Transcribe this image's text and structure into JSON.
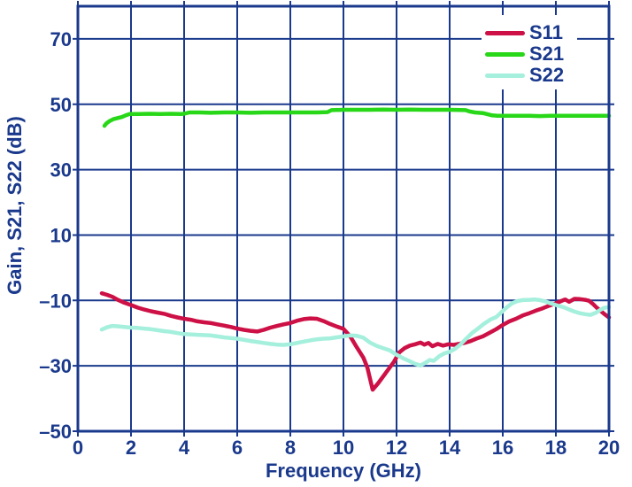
{
  "colors": {
    "axis": "#1a398c",
    "background": "#ffffff",
    "s11": "#cd1045",
    "s21": "#28d818",
    "s22": "#a5efdd"
  },
  "chart_data": {
    "type": "line",
    "title": "",
    "xlabel": "Frequency (GHz)",
    "ylabel": "Gain, S21, S22 (dB)",
    "xlim": [
      0,
      20
    ],
    "ylim": [
      -50,
      80
    ],
    "grid": true,
    "legend_position": "top-right",
    "x_ticks": {
      "values": [
        0,
        2,
        4,
        6,
        8,
        10,
        12,
        14,
        16,
        18,
        20
      ],
      "labels": [
        "0",
        "2",
        "4",
        "6",
        "8",
        "10",
        "12",
        "14",
        "16",
        "18",
        "20"
      ]
    },
    "y_ticks": {
      "values": [
        70,
        50,
        30,
        10,
        -10,
        -30,
        -50
      ],
      "labels": [
        "70",
        "50",
        "30",
        "10",
        "–10",
        "–30",
        "–50"
      ]
    },
    "series": [
      {
        "name": "S11",
        "color": "#cd1045",
        "points": [
          [
            0.9,
            -7.8
          ],
          [
            1.1,
            -8.3
          ],
          [
            1.3,
            -8.9
          ],
          [
            1.5,
            -9.8
          ],
          [
            1.75,
            -10.7
          ],
          [
            2,
            -11.4
          ],
          [
            2.25,
            -12.2
          ],
          [
            2.5,
            -12.8
          ],
          [
            2.75,
            -13.3
          ],
          [
            3,
            -13.7
          ],
          [
            3.25,
            -14.1
          ],
          [
            3.5,
            -14.7
          ],
          [
            3.75,
            -15.2
          ],
          [
            4,
            -15.6
          ],
          [
            4.25,
            -15.9
          ],
          [
            4.5,
            -16.4
          ],
          [
            4.75,
            -16.7
          ],
          [
            5,
            -16.9
          ],
          [
            5.25,
            -17.3
          ],
          [
            5.5,
            -17.7
          ],
          [
            5.75,
            -18.1
          ],
          [
            6,
            -18.6
          ],
          [
            6.25,
            -19
          ],
          [
            6.5,
            -19.3
          ],
          [
            6.75,
            -19.5
          ],
          [
            7,
            -19
          ],
          [
            7.25,
            -18.3
          ],
          [
            7.5,
            -17.8
          ],
          [
            7.75,
            -17.3
          ],
          [
            8,
            -16.9
          ],
          [
            8.25,
            -16.2
          ],
          [
            8.5,
            -15.7
          ],
          [
            8.75,
            -15.5
          ],
          [
            9,
            -15.6
          ],
          [
            9.25,
            -16.3
          ],
          [
            9.5,
            -17.2
          ],
          [
            9.75,
            -18
          ],
          [
            10,
            -18.7
          ],
          [
            10.25,
            -20.9
          ],
          [
            10.5,
            -24.3
          ],
          [
            10.75,
            -27.5
          ],
          [
            10.9,
            -30.5
          ],
          [
            11.1,
            -37.3
          ],
          [
            11.3,
            -35.4
          ],
          [
            11.5,
            -33.2
          ],
          [
            11.7,
            -31
          ],
          [
            11.9,
            -28.8
          ],
          [
            12.1,
            -25.9
          ],
          [
            12.3,
            -24.6
          ],
          [
            12.5,
            -23.8
          ],
          [
            12.7,
            -23.4
          ],
          [
            12.9,
            -22.9
          ],
          [
            13.05,
            -23.5
          ],
          [
            13.2,
            -23
          ],
          [
            13.35,
            -24
          ],
          [
            13.55,
            -23.3
          ],
          [
            13.75,
            -23.8
          ],
          [
            13.95,
            -23.4
          ],
          [
            14.15,
            -23.6
          ],
          [
            14.35,
            -23.3
          ],
          [
            14.55,
            -23
          ],
          [
            14.8,
            -22.4
          ],
          [
            15,
            -21.7
          ],
          [
            15.25,
            -21
          ],
          [
            15.5,
            -19.9
          ],
          [
            15.75,
            -18.8
          ],
          [
            16,
            -17.5
          ],
          [
            16.25,
            -16.4
          ],
          [
            16.5,
            -15.6
          ],
          [
            16.75,
            -14.6
          ],
          [
            17,
            -13.9
          ],
          [
            17.25,
            -13.1
          ],
          [
            17.5,
            -12.4
          ],
          [
            17.75,
            -11.6
          ],
          [
            18,
            -10.9
          ],
          [
            18.2,
            -10.2
          ],
          [
            18.35,
            -9.7
          ],
          [
            18.5,
            -10.4
          ],
          [
            18.7,
            -9.5
          ],
          [
            18.9,
            -9.6
          ],
          [
            19.1,
            -9.8
          ],
          [
            19.25,
            -10.1
          ],
          [
            19.4,
            -11.1
          ],
          [
            19.55,
            -12.3
          ],
          [
            19.7,
            -13.3
          ],
          [
            19.85,
            -14.3
          ],
          [
            20,
            -15.2
          ]
        ]
      },
      {
        "name": "S21",
        "color": "#28d818",
        "points": [
          [
            1,
            43.4
          ],
          [
            1.08,
            44.2
          ],
          [
            1.2,
            44.9
          ],
          [
            1.35,
            45.5
          ],
          [
            1.5,
            45.8
          ],
          [
            1.65,
            46.1
          ],
          [
            1.8,
            46.6
          ],
          [
            1.95,
            47
          ],
          [
            2.3,
            47
          ],
          [
            2.7,
            47.1
          ],
          [
            3.1,
            47
          ],
          [
            3.5,
            47.1
          ],
          [
            3.9,
            47
          ],
          [
            4.05,
            47.2
          ],
          [
            4.2,
            47.5
          ],
          [
            4.6,
            47.5
          ],
          [
            5,
            47.4
          ],
          [
            5.5,
            47.5
          ],
          [
            6,
            47.5
          ],
          [
            6.5,
            47.4
          ],
          [
            7,
            47.5
          ],
          [
            7.5,
            47.5
          ],
          [
            8,
            47.5
          ],
          [
            8.5,
            47.5
          ],
          [
            9,
            47.5
          ],
          [
            9.4,
            47.6
          ],
          [
            9.55,
            48.2
          ],
          [
            10,
            48.3
          ],
          [
            10.5,
            48.3
          ],
          [
            11,
            48.3
          ],
          [
            11.5,
            48.4
          ],
          [
            12,
            48.3
          ],
          [
            12.5,
            48.4
          ],
          [
            13,
            48.3
          ],
          [
            13.5,
            48.3
          ],
          [
            14,
            48.3
          ],
          [
            14.6,
            48.2
          ],
          [
            14.75,
            47.8
          ],
          [
            14.95,
            47.5
          ],
          [
            15.25,
            47.3
          ],
          [
            15.45,
            46.9
          ],
          [
            15.6,
            46.6
          ],
          [
            15.8,
            46.5
          ],
          [
            16.2,
            46.5
          ],
          [
            16.6,
            46.5
          ],
          [
            17,
            46.5
          ],
          [
            17.4,
            46.4
          ],
          [
            17.8,
            46.5
          ],
          [
            18.2,
            46.5
          ],
          [
            18.6,
            46.5
          ],
          [
            19,
            46.5
          ],
          [
            19.4,
            46.5
          ],
          [
            19.7,
            46.5
          ],
          [
            20,
            46.5
          ]
        ]
      },
      {
        "name": "S22",
        "color": "#a5efdd",
        "points": [
          [
            0.9,
            -18.9
          ],
          [
            1.1,
            -18.2
          ],
          [
            1.3,
            -17.8
          ],
          [
            1.5,
            -17.9
          ],
          [
            1.75,
            -18.1
          ],
          [
            2,
            -18.3
          ],
          [
            2.25,
            -18.4
          ],
          [
            2.5,
            -18.6
          ],
          [
            2.75,
            -18.8
          ],
          [
            3,
            -19.1
          ],
          [
            3.25,
            -19.4
          ],
          [
            3.5,
            -19.6
          ],
          [
            3.75,
            -20
          ],
          [
            4,
            -20.3
          ],
          [
            4.5,
            -20.5
          ],
          [
            5,
            -20.7
          ],
          [
            5.25,
            -21
          ],
          [
            5.5,
            -21.3
          ],
          [
            6,
            -21.7
          ],
          [
            6.5,
            -22.4
          ],
          [
            7,
            -23
          ],
          [
            7.25,
            -23.3
          ],
          [
            7.5,
            -23.5
          ],
          [
            7.75,
            -23.6
          ],
          [
            8,
            -23.4
          ],
          [
            8.25,
            -23
          ],
          [
            8.5,
            -22.6
          ],
          [
            8.75,
            -22.2
          ],
          [
            9,
            -21.9
          ],
          [
            9.25,
            -21.7
          ],
          [
            9.5,
            -21.6
          ],
          [
            9.75,
            -21.3
          ],
          [
            10,
            -21
          ],
          [
            10.25,
            -20.7
          ],
          [
            10.5,
            -20.8
          ],
          [
            10.75,
            -21.4
          ],
          [
            11,
            -22.9
          ],
          [
            11.25,
            -23.9
          ],
          [
            11.5,
            -24.6
          ],
          [
            11.75,
            -25.3
          ],
          [
            12,
            -26.6
          ],
          [
            12.25,
            -27.7
          ],
          [
            12.5,
            -28.6
          ],
          [
            12.7,
            -29.4
          ],
          [
            12.9,
            -29.9
          ],
          [
            13.1,
            -29
          ],
          [
            13.25,
            -28.2
          ],
          [
            13.4,
            -28.5
          ],
          [
            13.6,
            -27.1
          ],
          [
            13.8,
            -26.2
          ],
          [
            14,
            -25.7
          ],
          [
            14.2,
            -24.8
          ],
          [
            14.4,
            -23.5
          ],
          [
            14.6,
            -21.9
          ],
          [
            14.85,
            -19.9
          ],
          [
            15.1,
            -18.4
          ],
          [
            15.3,
            -17.1
          ],
          [
            15.55,
            -15.8
          ],
          [
            15.75,
            -15.1
          ],
          [
            15.95,
            -13.6
          ],
          [
            16.15,
            -12.1
          ],
          [
            16.35,
            -10.9
          ],
          [
            16.55,
            -10.2
          ],
          [
            16.75,
            -9.9
          ],
          [
            17,
            -9.8
          ],
          [
            17.2,
            -9.7
          ],
          [
            17.4,
            -9.9
          ],
          [
            17.6,
            -10.3
          ],
          [
            17.8,
            -10.9
          ],
          [
            18,
            -11.4
          ],
          [
            18.3,
            -12.1
          ],
          [
            18.5,
            -12.8
          ],
          [
            18.7,
            -13.4
          ],
          [
            18.9,
            -13.9
          ],
          [
            19.1,
            -14.2
          ],
          [
            19.3,
            -14.4
          ],
          [
            19.5,
            -13.8
          ],
          [
            19.65,
            -13
          ],
          [
            19.8,
            -12.3
          ],
          [
            20,
            -12
          ]
        ]
      }
    ]
  }
}
